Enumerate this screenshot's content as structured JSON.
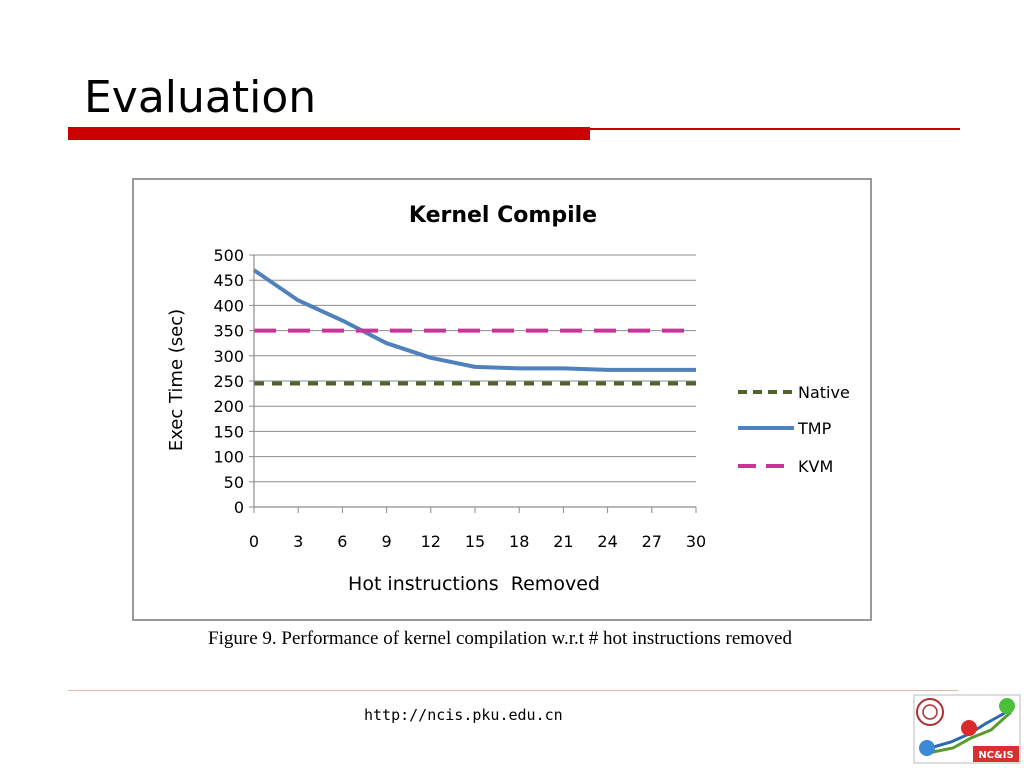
{
  "slide": {
    "title": "Evaluation",
    "caption": "Figure 9. Performance of kernel compilation w.r.t # hot instructions removed",
    "footer_url": "http://ncis.pku.edu.cn",
    "logo_text": "NC&IS"
  },
  "colors": {
    "accent_red": "#cc0000",
    "native": "#4f6228",
    "tmp": "#4f81bd",
    "kvm": "#cc3399"
  },
  "chart_data": {
    "type": "line",
    "title": "Kernel Compile",
    "xlabel": "Hot instructions  Removed",
    "ylabel": "Exec Time (sec)",
    "x": [
      0,
      3,
      6,
      9,
      12,
      15,
      18,
      21,
      24,
      27,
      30
    ],
    "x_ticks": [
      "0",
      "3",
      "6",
      "9",
      "12",
      "15",
      "18",
      "21",
      "24",
      "27",
      "30"
    ],
    "y_ticks": [
      "0",
      "50",
      "100",
      "150",
      "200",
      "250",
      "300",
      "350",
      "400",
      "450",
      "500"
    ],
    "ylim": [
      0,
      500
    ],
    "xlim": [
      0,
      30
    ],
    "grid": true,
    "legend_position": "right",
    "series": [
      {
        "name": "Native",
        "values": [
          245,
          245,
          245,
          245,
          245,
          245,
          245,
          245,
          245,
          245,
          245
        ],
        "style": "dashed",
        "color": "#4f6228"
      },
      {
        "name": "TMP",
        "values": [
          470,
          410,
          370,
          325,
          296,
          278,
          275,
          275,
          272,
          272,
          272
        ],
        "style": "solid",
        "color": "#4f81bd"
      },
      {
        "name": "KVM",
        "values": [
          350,
          350,
          350,
          350,
          350,
          350,
          350,
          350,
          350,
          350,
          350
        ],
        "style": "longdash",
        "color": "#cc3399"
      }
    ]
  }
}
